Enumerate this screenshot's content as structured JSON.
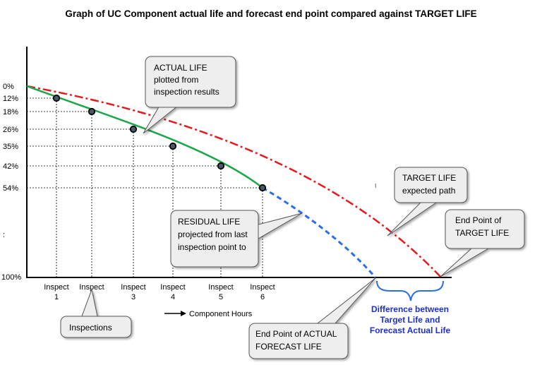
{
  "title": "Graph of UC Component actual life and forecast end point compared against TARGET LIFE",
  "y_axis": {
    "tick_labels": [
      "0%",
      "12%",
      "18%",
      "26%",
      "35%",
      "42%",
      "54%"
    ],
    "bottom_label": "100%",
    "side_marker": ":"
  },
  "x_axis": {
    "inspect_labels": [
      [
        "Inspect",
        "1"
      ],
      [
        "Inspect",
        "2"
      ],
      [
        "Inspect",
        "3"
      ],
      [
        "Inspect",
        "4"
      ],
      [
        "Inspect",
        "5"
      ],
      [
        "Inspect",
        "6"
      ]
    ],
    "hours_label": "Component Hours"
  },
  "callouts": {
    "actual_life": [
      "ACTUAL LIFE",
      "plotted from",
      "inspection results"
    ],
    "residual_life": [
      "RESIDUAL LIFE",
      "projected from last",
      "inspection point to"
    ],
    "target_life": [
      "TARGET LIFE",
      "expected path"
    ],
    "end_target": [
      "End Point of",
      "TARGET LIFE"
    ],
    "end_actual": [
      "End Point of ACTUAL",
      "FORECAST LIFE"
    ],
    "inspections": [
      "Inspections"
    ]
  },
  "difference_label": [
    "Difference between",
    "Target Life and",
    "Forecast Actual Life"
  ],
  "stray_mark": "ι",
  "colors": {
    "actual": "#1aa84a",
    "target": "#e8191e",
    "residual": "#2a6ee8",
    "difference": "#1d2fd6",
    "callout_fill": "#eeeeee",
    "callout_stroke": "#555555"
  },
  "chart_data": {
    "type": "line",
    "y_reversed": true,
    "series": [
      {
        "values": [
          0,
          12,
          18,
          26,
          35,
          42,
          54
        ]
      },
      {
        "values": [
          0,
          100
        ]
      },
      {
        "values": [
          54,
          100
        ]
      }
    ]
  }
}
